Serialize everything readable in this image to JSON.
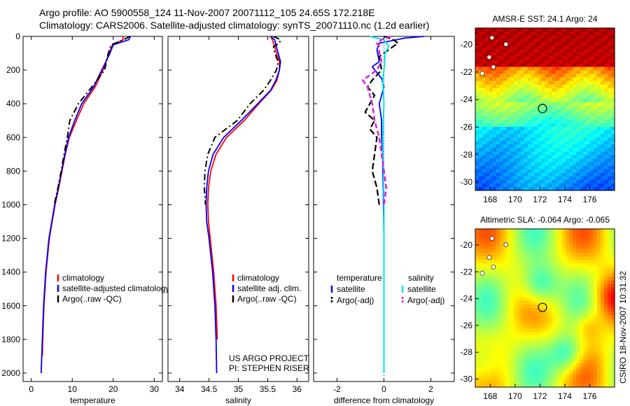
{
  "figure": {
    "title_line1": "Argo profile: AO 5900558_124 11-Nov-2007 20071112_105 24.65S 172.218E",
    "title_line2": "Climatology: CARS2006. Satellite-adjusted climatology: synTS_20071110.nc (1.2d earlier)",
    "side_label": "CSIRO 18-Nov-2007 10:31:32",
    "colors": {
      "climatology": "#ff0000",
      "satellite": "#0000ff",
      "argo": "#000000",
      "satellite_salinity": "#00e5ee",
      "argo_salinity": "#e020e0"
    }
  },
  "chart_data": [
    {
      "type": "line",
      "xlabel": "temperature",
      "ylabel": "",
      "xlim": [
        -2,
        32
      ],
      "ylim": [
        2050,
        0
      ],
      "xticks": [
        0,
        10,
        20,
        30
      ],
      "yticks": [
        0,
        200,
        400,
        600,
        800,
        1000,
        1200,
        1400,
        1600,
        1800,
        2000
      ],
      "legend": [
        "climatology",
        "satellite-adjusted climatology",
        "Argo(..raw -QC)"
      ],
      "series": [
        {
          "name": "climatology",
          "depth": [
            0,
            20,
            50,
            100,
            200,
            300,
            400,
            500,
            600,
            700,
            800,
            900,
            1000,
            1200,
            1400,
            1600,
            1800,
            1900
          ],
          "values": [
            22.4,
            22.4,
            19.8,
            19.0,
            17.5,
            15.6,
            12.8,
            11.0,
            9.3,
            8.3,
            7.5,
            6.7,
            5.8,
            4.4,
            3.6,
            3.1,
            2.8,
            2.7
          ]
        },
        {
          "name": "satellite-adjusted climatology",
          "depth": [
            0,
            20,
            50,
            100,
            200,
            300,
            400,
            500,
            600,
            700,
            800,
            900,
            1000,
            1200,
            1400,
            1600,
            1800,
            2000
          ],
          "values": [
            24.2,
            23.8,
            20.0,
            19.2,
            17.2,
            15.2,
            12.3,
            10.6,
            9.1,
            8.2,
            7.4,
            6.6,
            5.7,
            4.3,
            3.5,
            3.0,
            2.7,
            2.4
          ]
        },
        {
          "name": "Argo(..raw -QC)",
          "depth": [
            0,
            20,
            50,
            100,
            200,
            300,
            400,
            500,
            600,
            700,
            800,
            900,
            1000
          ],
          "values": [
            24.1,
            22.5,
            19.5,
            18.8,
            17.9,
            14.8,
            11.5,
            9.4,
            8.8,
            8.0,
            7.3,
            6.5,
            5.6
          ]
        }
      ]
    },
    {
      "type": "line",
      "xlabel": "salinity",
      "ylabel": "",
      "xlim": [
        33.8,
        36.2
      ],
      "ylim": [
        2050,
        0
      ],
      "xticks": [
        34,
        34.5,
        35,
        35.5,
        36
      ],
      "legend": [
        "climatology",
        "satellite adj. clim.",
        "Argo(..raw -QC)"
      ],
      "annotation": [
        "US ARGO PROJECT",
        "PI: STEPHEN RISER"
      ],
      "series": [
        {
          "name": "climatology",
          "depth": [
            0,
            20,
            60,
            100,
            150,
            200,
            260,
            320,
            400,
            500,
            600,
            700,
            800,
            900,
            1000,
            1100,
            1200,
            1400,
            1600,
            1800
          ],
          "values": [
            35.55,
            35.58,
            35.62,
            35.65,
            35.7,
            35.7,
            35.66,
            35.56,
            35.35,
            35.1,
            34.8,
            34.62,
            34.53,
            34.49,
            34.48,
            34.49,
            34.52,
            34.58,
            34.62,
            34.64
          ]
        },
        {
          "name": "satellite adj. clim.",
          "depth": [
            0,
            20,
            60,
            100,
            150,
            200,
            260,
            320,
            400,
            500,
            600,
            700,
            800,
            900,
            1000,
            1100,
            1200,
            1400,
            1600,
            1800,
            2000
          ],
          "values": [
            35.55,
            35.62,
            35.65,
            35.68,
            35.72,
            35.7,
            35.64,
            35.55,
            35.33,
            35.05,
            34.75,
            34.57,
            34.49,
            34.46,
            34.45,
            34.46,
            34.5,
            34.56,
            34.6,
            34.62,
            34.63
          ]
        },
        {
          "name": "Argo(..raw -QC)",
          "depth": [
            0,
            20,
            40,
            60,
            100,
            150,
            200,
            260,
            320,
            400,
            500,
            600,
            700,
            800,
            900,
            1000
          ],
          "values": [
            35.6,
            35.72,
            35.7,
            35.6,
            35.62,
            35.68,
            35.65,
            35.55,
            35.43,
            35.2,
            34.98,
            34.6,
            34.48,
            34.43,
            34.42,
            34.44
          ]
        }
      ]
    },
    {
      "type": "line",
      "xlabel": "difference from climatology",
      "ylabel": "",
      "xlim": [
        -3,
        3
      ],
      "ylim": [
        2050,
        0
      ],
      "xticks": [
        -2,
        0,
        2
      ],
      "legend_headers": [
        "temperature",
        "salinity"
      ],
      "legend": [
        "satellite",
        "Argo(-adj)",
        "satellite",
        "Argo(-adj)"
      ],
      "series": [
        {
          "name": "satellite",
          "quantity": "temperature",
          "depth": [
            0,
            10,
            40,
            80,
            150,
            180,
            250,
            300,
            400,
            500,
            600,
            700,
            800,
            900,
            1000,
            1200,
            1400,
            1600,
            1800,
            2000
          ],
          "values": [
            1.7,
            0.9,
            -0.2,
            -0.3,
            -0.2,
            -0.5,
            -0.1,
            0.0,
            -0.2,
            -0.1,
            -0.1,
            -0.05,
            -0.05,
            -0.03,
            -0.02,
            0.0,
            0.0,
            0.0,
            0.0,
            0.0
          ]
        },
        {
          "name": "Argo(-adj)",
          "quantity": "temperature",
          "depth": [
            0,
            20,
            40,
            80,
            120,
            200,
            260,
            300,
            350,
            400,
            450,
            500,
            550,
            600,
            700,
            800,
            900,
            1000
          ],
          "values": [
            0.0,
            0.4,
            0.6,
            0.2,
            -0.2,
            -0.1,
            -0.5,
            -0.7,
            -0.4,
            -0.6,
            -0.8,
            -0.4,
            -0.6,
            -0.3,
            -0.4,
            -0.5,
            -0.3,
            -0.2
          ]
        },
        {
          "name": "satellite",
          "quantity": "salinity",
          "depth": [
            0,
            20,
            60,
            100,
            200,
            260,
            400,
            600,
            800,
            1000,
            1200,
            1600,
            2000
          ],
          "values": [
            -0.6,
            0.0,
            0.2,
            0.05,
            0.0,
            -0.05,
            0.0,
            -0.05,
            -0.02,
            0.0,
            0.0,
            0.0,
            0.0
          ]
        },
        {
          "name": "Argo(-adj)",
          "quantity": "salinity",
          "depth": [
            0,
            20,
            40,
            60,
            100,
            150,
            200,
            260,
            300,
            400,
            500,
            600,
            700,
            800,
            900,
            1000
          ],
          "values": [
            0.3,
            -0.1,
            -0.3,
            -0.2,
            -0.2,
            -0.1,
            -0.3,
            -0.9,
            -0.7,
            -0.5,
            -0.4,
            -0.2,
            -0.1,
            0.0,
            0.1,
            0.0
          ]
        }
      ]
    },
    {
      "type": "heatmap",
      "title": "AMSR-E SST: 24.1 Argo: 24",
      "xlim": [
        166.8,
        178
      ],
      "ylim": [
        -30.6,
        -18.8
      ],
      "xticks": [
        168,
        170,
        172,
        174,
        176
      ],
      "yticks": [
        -20,
        -22,
        -24,
        -26,
        -28,
        -30
      ],
      "marker": {
        "lon": 172.2,
        "lat": -24.65
      }
    },
    {
      "type": "heatmap",
      "title": "Altimetric SLA: -0.064 Argo: -0.065",
      "xlim": [
        166.8,
        178
      ],
      "ylim": [
        -30.6,
        -18.8
      ],
      "xticks": [
        168,
        170,
        172,
        174,
        176
      ],
      "yticks": [
        -20,
        -22,
        -24,
        -26,
        -28,
        -30
      ],
      "marker": {
        "lon": 172.2,
        "lat": -24.65
      }
    }
  ]
}
